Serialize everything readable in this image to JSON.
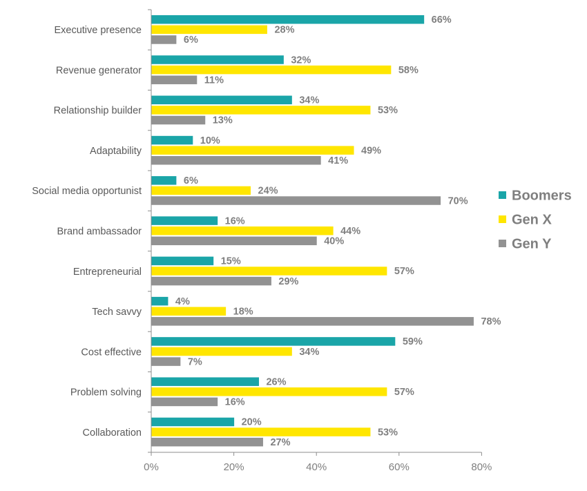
{
  "chart_data": {
    "type": "bar",
    "orientation": "horizontal",
    "title": "",
    "xlabel": "",
    "ylabel": "",
    "categories": [
      "Executive presence",
      "Revenue generator",
      "Relationship builder",
      "Adaptability",
      "Social media opportunist",
      "Brand ambassador",
      "Entrepreneurial",
      "Tech savvy",
      "Cost effective",
      "Problem solving",
      "Collaboration"
    ],
    "series": [
      {
        "name": "Boomers",
        "color": "#1aa5a8",
        "values": [
          66,
          32,
          34,
          10,
          6,
          16,
          15,
          4,
          59,
          26,
          20
        ]
      },
      {
        "name": "Gen X",
        "color": "#ffe600",
        "values": [
          28,
          58,
          53,
          49,
          24,
          44,
          57,
          18,
          34,
          57,
          53
        ]
      },
      {
        "name": "Gen Y",
        "color": "#929292",
        "values": [
          6,
          11,
          13,
          41,
          70,
          40,
          29,
          78,
          7,
          16,
          27
        ]
      }
    ],
    "data_labels": [
      [
        "66%",
        "28%",
        "6%"
      ],
      [
        "32%",
        "58%",
        "11%"
      ],
      [
        "34%",
        "53%",
        "13%"
      ],
      [
        "10%",
        "49%",
        "41%"
      ],
      [
        "6%",
        "24%",
        "70%"
      ],
      [
        "16%",
        "44%",
        "40%"
      ],
      [
        "15%",
        "57%",
        "29%"
      ],
      [
        "4%",
        "18%",
        "78%"
      ],
      [
        "59%",
        "34%",
        "7%"
      ],
      [
        "26%",
        "57%",
        "16%"
      ],
      [
        "20%",
        "53%",
        "27%"
      ]
    ],
    "xlim": [
      0,
      80
    ],
    "x_ticks": [
      0,
      20,
      40,
      60,
      80
    ],
    "x_tick_labels": [
      "0%",
      "20%",
      "40%",
      "60%",
      "80%"
    ],
    "grid": false,
    "legend_position": "right"
  }
}
